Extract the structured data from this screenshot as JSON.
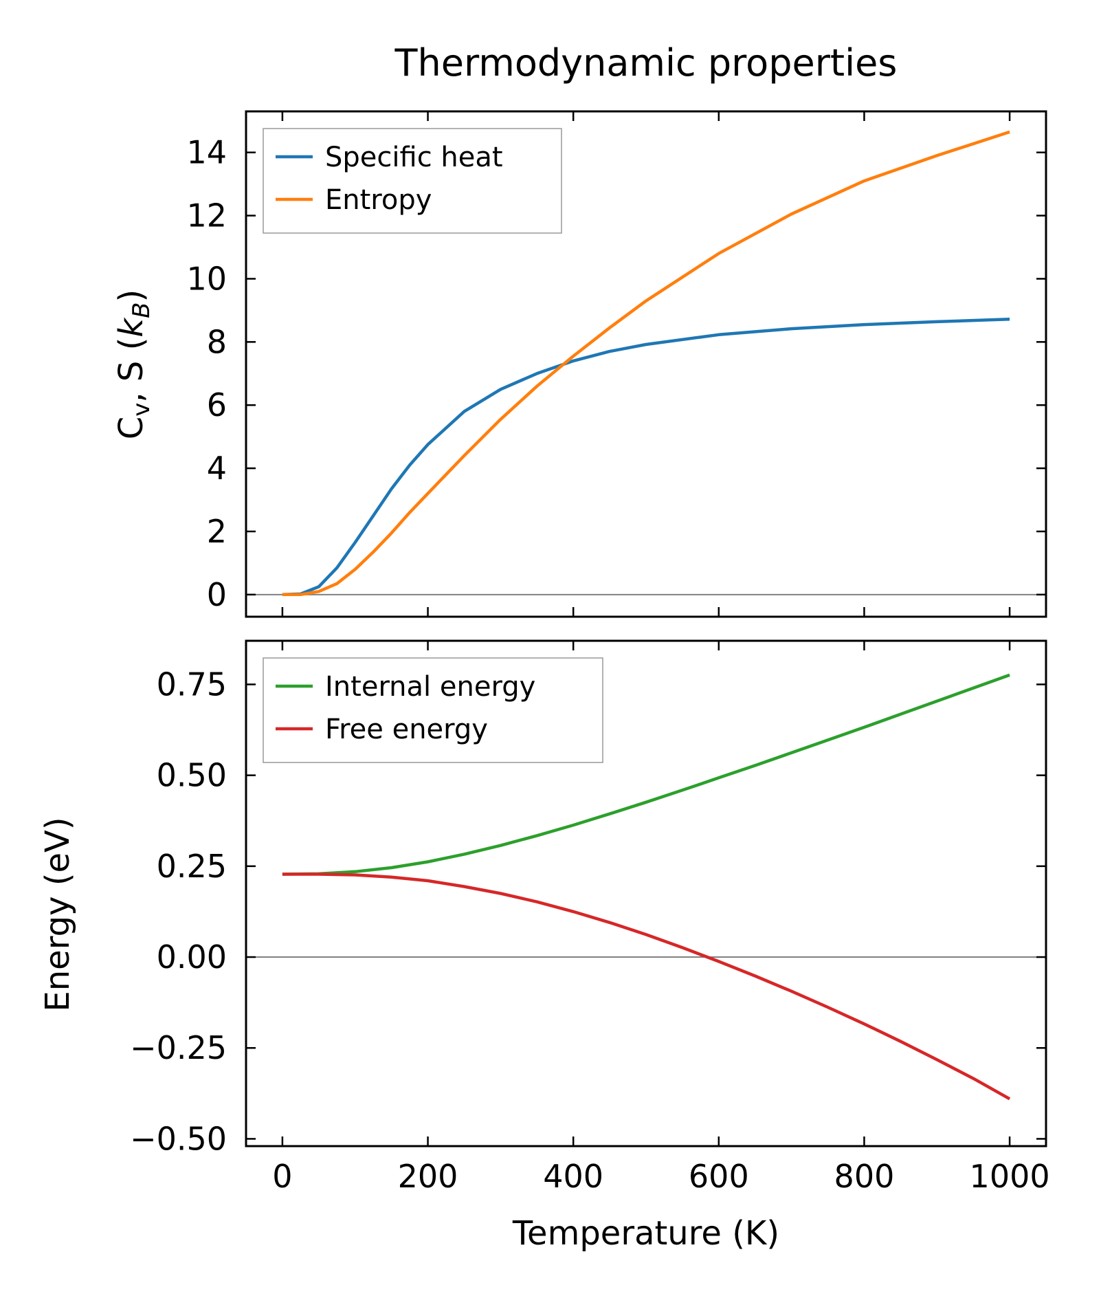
{
  "chart_data": {
    "title": "Thermodynamic properties",
    "xlabel": "Temperature (K)",
    "x_ticks": [
      0,
      200,
      400,
      600,
      800,
      1000
    ],
    "xlim": [
      -50,
      1050
    ],
    "panels": [
      {
        "type": "line",
        "ylabel_main": "C",
        "ylabel_sub": "v",
        "ylabel_mid": ", S (",
        "ylabel_italic": "k",
        "ylabel_italic_sub": "B",
        "ylabel_end": ")",
        "ylim": [
          -0.7,
          15.3
        ],
        "y_ticks": [
          0,
          2,
          4,
          6,
          8,
          10,
          12,
          14
        ],
        "y_tick_labels": [
          "0",
          "2",
          "4",
          "6",
          "8",
          "10",
          "12",
          "14"
        ],
        "zero_line": true,
        "series": [
          {
            "name": "Specific heat",
            "color": "#1f77b4",
            "x": [
              0,
              25,
              50,
              75,
              100,
              125,
              150,
              175,
              200,
              250,
              300,
              350,
              400,
              450,
              500,
              600,
              700,
              800,
              900,
              1000
            ],
            "y": [
              0,
              0.02,
              0.25,
              0.85,
              1.65,
              2.5,
              3.35,
              4.1,
              4.75,
              5.8,
              6.5,
              7.0,
              7.4,
              7.7,
              7.92,
              8.23,
              8.42,
              8.55,
              8.64,
              8.72
            ]
          },
          {
            "name": "Entropy",
            "color": "#ff7f0e",
            "x": [
              0,
              25,
              50,
              75,
              100,
              125,
              150,
              175,
              200,
              250,
              300,
              350,
              400,
              450,
              500,
              600,
              700,
              800,
              900,
              1000
            ],
            "y": [
              0,
              0.0,
              0.1,
              0.35,
              0.8,
              1.35,
              1.95,
              2.6,
              3.2,
              4.4,
              5.55,
              6.6,
              7.55,
              8.45,
              9.3,
              10.8,
              12.05,
              13.1,
              13.9,
              14.65
            ]
          }
        ]
      },
      {
        "type": "line",
        "ylabel": "Energy (eV)",
        "ylim": [
          -0.52,
          0.87
        ],
        "y_ticks": [
          -0.5,
          -0.25,
          0,
          0.25,
          0.5,
          0.75
        ],
        "y_tick_labels": [
          "−0.50",
          "−0.25",
          "0.00",
          "0.25",
          "0.50",
          "0.75"
        ],
        "zero_line": true,
        "series": [
          {
            "name": "Internal energy",
            "color": "#2ca02c",
            "x": [
              0,
              50,
              100,
              150,
              200,
              250,
              300,
              350,
              400,
              450,
              500,
              550,
              600,
              650,
              700,
              750,
              800,
              850,
              900,
              950,
              1000
            ],
            "y": [
              0.228,
              0.229,
              0.235,
              0.246,
              0.262,
              0.283,
              0.307,
              0.334,
              0.363,
              0.394,
              0.426,
              0.459,
              0.493,
              0.527,
              0.562,
              0.597,
              0.632,
              0.668,
              0.704,
              0.74,
              0.776
            ]
          },
          {
            "name": "Free energy",
            "color": "#d62728",
            "x": [
              0,
              50,
              100,
              150,
              200,
              250,
              300,
              350,
              400,
              450,
              500,
              550,
              600,
              650,
              700,
              750,
              800,
              850,
              900,
              950,
              1000
            ],
            "y": [
              0.228,
              0.228,
              0.226,
              0.22,
              0.21,
              0.194,
              0.175,
              0.152,
              0.125,
              0.095,
              0.062,
              0.026,
              -0.012,
              -0.052,
              -0.094,
              -0.138,
              -0.184,
              -0.232,
              -0.282,
              -0.334,
              -0.39
            ]
          }
        ]
      }
    ]
  }
}
